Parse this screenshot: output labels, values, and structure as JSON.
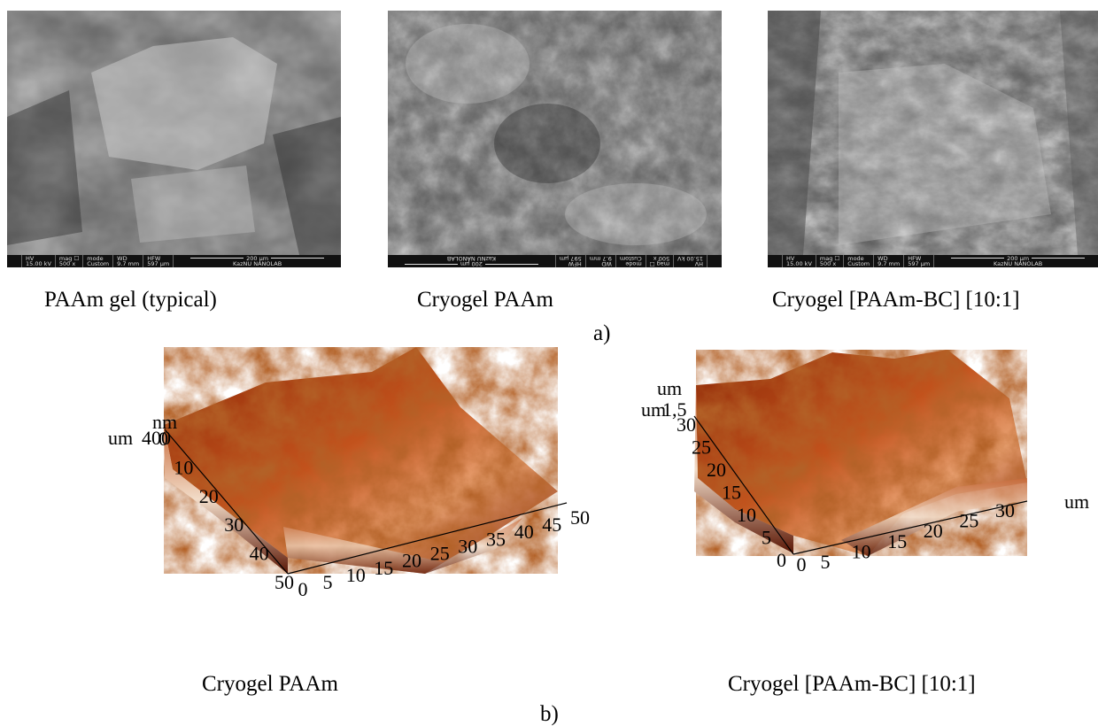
{
  "panel_a": {
    "label": "a)",
    "images": [
      {
        "caption": "PAAm gel (typical)",
        "databar": {
          "hv_key": "HV",
          "hv_val": "15.00 kV",
          "mag_key": "mag ☐",
          "mag_val": "500 x",
          "mode_key": "mode",
          "mode_val": "Custom",
          "wd_key": "WD",
          "wd_val": "9.7 mm",
          "hfw_key": "HFW",
          "hfw_val": "597 µm",
          "scale": "200 µm",
          "lab": "KazNU NANOLAB"
        }
      },
      {
        "caption": "Cryogel PAAm",
        "databar": {
          "hv_key": "HV",
          "hv_val": "15.00 kV",
          "mag_key": "mag ☐",
          "mag_val": "500 x",
          "mode_key": "mode",
          "mode_val": "Custom",
          "wd_key": "WD",
          "wd_val": "9.7 mm",
          "hfw_key": "HFW",
          "hfw_val": "597 µm",
          "scale": "200 µm",
          "lab": "KazNU NANOLAB"
        }
      },
      {
        "caption": "Cryogel [PAAm-BC] [10:1]",
        "databar": {
          "hv_key": "HV",
          "hv_val": "15.00 kV",
          "mag_key": "mag ☐",
          "mag_val": "500 x",
          "mode_key": "mode",
          "mode_val": "Custom",
          "wd_key": "WD",
          "wd_val": "9.7 mm",
          "hfw_key": "HFW",
          "hfw_val": "597 µm",
          "scale": "200 µm",
          "lab": "KazNU NANOLAB"
        }
      }
    ]
  },
  "panel_b": {
    "label": "b)",
    "plots": [
      {
        "caption": "Cryogel PAAm",
        "x_ticks": [
          "5",
          "10",
          "15",
          "20",
          "25",
          "30",
          "35",
          "40",
          "45",
          "50"
        ],
        "y_ticks": [
          "0",
          "10",
          "20",
          "30",
          "40",
          "50"
        ],
        "x_origin": "0",
        "z_unit": "nm",
        "z_tick": "400",
        "y_unit": "um"
      },
      {
        "caption": "Cryogel [PAAm-BC] [10:1]",
        "x_ticks": [
          "5",
          "10",
          "15",
          "20",
          "25",
          "30"
        ],
        "y_ticks": [
          "0",
          "5",
          "10",
          "15",
          "20",
          "25",
          "30"
        ],
        "x_origin": "0",
        "x_unit": "um",
        "y_unit": "um",
        "z_unit": "um",
        "z_tick": "1,5"
      }
    ]
  }
}
